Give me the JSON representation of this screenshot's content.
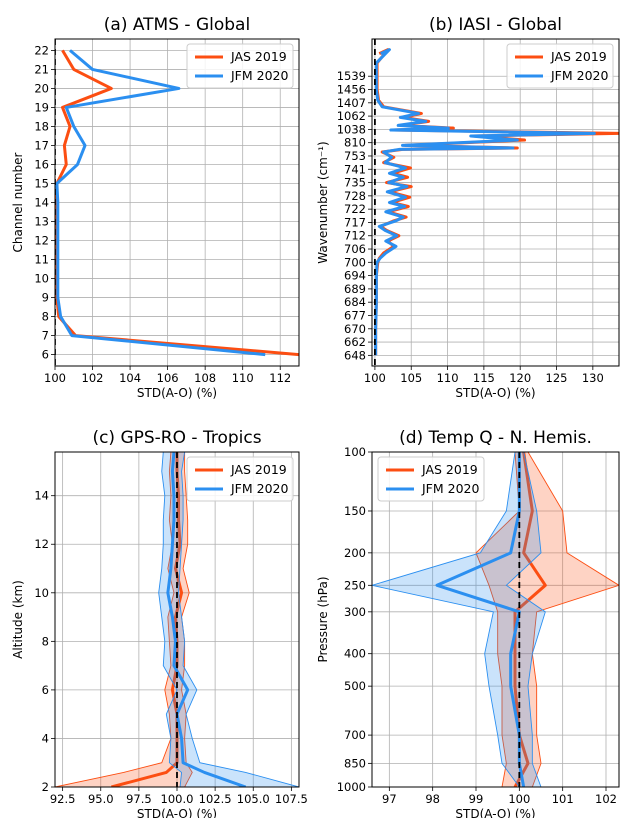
{
  "colors": {
    "jas": "#fc4e12",
    "jfm": "#2b8ff0"
  },
  "panels": [
    {
      "id": "a",
      "title": "(a) ATMS - Global",
      "xlabel": "STD(A-O) (%)",
      "ylabel": "Channel number",
      "legend": [
        "JAS 2019",
        "JFM 2020"
      ],
      "chart_data": {
        "type": "line",
        "xlim": [
          100,
          113
        ],
        "ylim": [
          5.4,
          22.6
        ],
        "xticks": [
          100,
          102,
          104,
          106,
          108,
          110,
          112
        ],
        "yticks": [
          6,
          7,
          8,
          9,
          10,
          11,
          12,
          13,
          14,
          15,
          16,
          17,
          18,
          19,
          20,
          21,
          22
        ],
        "grid": true,
        "legend_position": "top-right",
        "reference_line_x": 100,
        "series": [
          {
            "name": "JAS 2019",
            "color": "#fc4e12",
            "points": [
              [
                113.0,
                6
              ],
              [
                101.1,
                7
              ],
              [
                100.2,
                8
              ],
              [
                100.1,
                9
              ],
              [
                100.1,
                10
              ],
              [
                100.1,
                11
              ],
              [
                100.1,
                12
              ],
              [
                100.1,
                13
              ],
              [
                100.1,
                14
              ],
              [
                100.1,
                15
              ],
              [
                100.6,
                16
              ],
              [
                100.5,
                17
              ],
              [
                100.8,
                18
              ],
              [
                100.4,
                19
              ],
              [
                103.0,
                20
              ],
              [
                101.0,
                21
              ],
              [
                100.4,
                22
              ]
            ]
          },
          {
            "name": "JFM 2020",
            "color": "#2b8ff0",
            "points": [
              [
                111.2,
                6
              ],
              [
                100.9,
                7
              ],
              [
                100.3,
                8
              ],
              [
                100.15,
                9
              ],
              [
                100.15,
                10
              ],
              [
                100.15,
                11
              ],
              [
                100.15,
                12
              ],
              [
                100.15,
                13
              ],
              [
                100.15,
                14
              ],
              [
                100.1,
                15
              ],
              [
                101.2,
                16
              ],
              [
                101.6,
                17
              ],
              [
                101.0,
                18
              ],
              [
                100.6,
                19
              ],
              [
                106.6,
                20
              ],
              [
                102.0,
                21
              ],
              [
                100.8,
                22
              ]
            ]
          }
        ]
      }
    },
    {
      "id": "b",
      "title": "(b) IASI - Global",
      "xlabel": "STD(A-O) (%)",
      "ylabel": "Wavenumber (cm⁻¹)",
      "legend": [
        "JAS 2019",
        "JFM 2020"
      ],
      "chart_data": {
        "type": "line",
        "xlim": [
          99.6,
          133.6
        ],
        "ylim": [
          -0.8,
          23.8
        ],
        "xticks": [
          100,
          105,
          110,
          115,
          120,
          125,
          130
        ],
        "yticks": [
          "648",
          "662",
          "670",
          "677",
          "684",
          "689",
          "694",
          "700",
          "706",
          "712",
          "717",
          "722",
          "728",
          "735",
          "741",
          "753",
          "810",
          "1038",
          "1062",
          "1407",
          "1456",
          "1539"
        ],
        "grid": true,
        "legend_position": "top-right",
        "reference_line_x": 100,
        "series": [
          {
            "name": "JAS 2019",
            "color": "#fc4e12",
            "points": [
              [
                100.1,
                0
              ],
              [
                100.1,
                2
              ],
              [
                100.2,
                4
              ],
              [
                100.2,
                6
              ],
              [
                100.4,
                7
              ],
              [
                100.6,
                7.3
              ],
              [
                101.2,
                7.7
              ],
              [
                102.6,
                8.2
              ],
              [
                101.8,
                8.6
              ],
              [
                103.3,
                9.0
              ],
              [
                101.6,
                9.4
              ],
              [
                100.8,
                9.7
              ],
              [
                102.5,
                10.1
              ],
              [
                104.3,
                10.4
              ],
              [
                101.8,
                10.8
              ],
              [
                104.6,
                11.2
              ],
              [
                102.3,
                11.5
              ],
              [
                104.8,
                11.9
              ],
              [
                102.0,
                12.3
              ],
              [
                105.0,
                12.7
              ],
              [
                101.6,
                13.0
              ],
              [
                104.5,
                13.4
              ],
              [
                102.4,
                13.7
              ],
              [
                104.9,
                14.1
              ],
              [
                101.2,
                14.5
              ],
              [
                102.6,
                14.9
              ],
              [
                101.0,
                15.3
              ],
              [
                103.8,
                15.5
              ],
              [
                119.6,
                15.6
              ],
              [
                104.2,
                15.8
              ],
              [
                120.6,
                16.2
              ],
              [
                113.6,
                16.5
              ],
              [
                133.6,
                16.7
              ],
              [
                102.6,
                16.95
              ],
              [
                110.8,
                17.1
              ],
              [
                103.6,
                17.3
              ],
              [
                107.4,
                17.6
              ],
              [
                104.0,
                17.9
              ],
              [
                106.4,
                18.2
              ],
              [
                101.2,
                18.7
              ],
              [
                100.5,
                19.2
              ],
              [
                100.3,
                20.0
              ],
              [
                100.3,
                21.0
              ],
              [
                100.3,
                22.0
              ],
              [
                101.8,
                23.0
              ],
              [
                100.6,
                22.7
              ]
            ]
          },
          {
            "name": "JFM 2020",
            "color": "#2b8ff0",
            "points": [
              [
                100.1,
                0
              ],
              [
                100.1,
                2
              ],
              [
                100.2,
                4
              ],
              [
                100.2,
                6
              ],
              [
                100.3,
                7
              ],
              [
                100.7,
                7.3
              ],
              [
                101.5,
                7.7
              ],
              [
                102.9,
                8.2
              ],
              [
                101.5,
                8.6
              ],
              [
                103.0,
                9.0
              ],
              [
                101.4,
                9.4
              ],
              [
                100.6,
                9.7
              ],
              [
                102.8,
                10.1
              ],
              [
                103.9,
                10.4
              ],
              [
                101.5,
                10.8
              ],
              [
                104.1,
                11.2
              ],
              [
                102.0,
                11.5
              ],
              [
                104.2,
                11.9
              ],
              [
                101.7,
                12.3
              ],
              [
                104.4,
                12.7
              ],
              [
                101.9,
                13.0
              ],
              [
                103.9,
                13.4
              ],
              [
                102.0,
                13.7
              ],
              [
                104.2,
                14.1
              ],
              [
                101.4,
                14.5
              ],
              [
                102.3,
                14.9
              ],
              [
                101.2,
                15.3
              ],
              [
                103.4,
                15.5
              ],
              [
                119.0,
                15.6
              ],
              [
                103.8,
                15.8
              ],
              [
                119.6,
                16.2
              ],
              [
                113.2,
                16.5
              ],
              [
                130.2,
                16.7
              ],
              [
                102.2,
                16.95
              ],
              [
                110.1,
                17.1
              ],
              [
                103.2,
                17.3
              ],
              [
                107.0,
                17.6
              ],
              [
                103.5,
                17.9
              ],
              [
                106.0,
                18.2
              ],
              [
                101.0,
                18.7
              ],
              [
                100.4,
                19.2
              ],
              [
                100.2,
                20.0
              ],
              [
                100.2,
                21.0
              ],
              [
                100.2,
                22.0
              ],
              [
                102.0,
                23.0
              ],
              [
                100.8,
                22.7
              ]
            ]
          }
        ]
      }
    },
    {
      "id": "c",
      "title": "(c) GPS-RO - Tropics",
      "xlabel": "STD(A-O) (%)",
      "ylabel": "Altitude (km)",
      "legend": [
        "JAS 2019",
        "JFM 2020"
      ],
      "chart_data": {
        "type": "area",
        "xlim": [
          92,
          108
        ],
        "ylim": [
          2,
          15.8
        ],
        "xticks": [
          "92.5",
          "95.0",
          "97.5",
          "100.0",
          "102.5",
          "105.0",
          "107.5"
        ],
        "xtick_values": [
          92.5,
          95,
          97.5,
          100,
          102.5,
          105,
          107.5
        ],
        "yticks": [
          2,
          4,
          6,
          8,
          10,
          12,
          14
        ],
        "grid": true,
        "legend_position": "top-right",
        "reference_line_x": 100,
        "series": [
          {
            "name": "JAS 2019",
            "color": "#fc4e12",
            "y": [
              2,
              2.6,
              3,
              4,
              5,
              6,
              7,
              8,
              9,
              10,
              11,
              12,
              13,
              14,
              15,
              15.8
            ],
            "mean": [
              95.7,
              99.3,
              100.0,
              100.0,
              100.0,
              99.7,
              100.0,
              100.0,
              99.9,
              100.3,
              99.9,
              100.2,
              100.1,
              100.1,
              100.0,
              100.0
            ],
            "lower": [
              92.0,
              96.5,
              99.0,
              99.6,
              99.5,
              99.2,
              99.6,
              99.5,
              99.4,
              99.8,
              99.4,
              99.7,
              99.5,
              99.6,
              99.5,
              99.6
            ],
            "upper": [
              100.5,
              101.0,
              100.6,
              100.5,
              100.6,
              100.3,
              100.5,
              100.5,
              100.3,
              100.8,
              100.4,
              100.7,
              100.7,
              100.6,
              100.5,
              100.5
            ]
          },
          {
            "name": "JFM 2020",
            "color": "#2b8ff0",
            "y": [
              2,
              2.6,
              3,
              4,
              5,
              6,
              7,
              8,
              9,
              10,
              11,
              12,
              13,
              14,
              15,
              15.8
            ],
            "mean": [
              104.5,
              101.8,
              100.4,
              100.3,
              100.0,
              100.7,
              99.8,
              99.9,
              99.7,
              99.4,
              99.6,
              99.7,
              99.8,
              99.8,
              99.7,
              99.8
            ],
            "lower": [
              100.2,
              100.3,
              99.5,
              99.6,
              99.3,
              100.0,
              99.1,
              99.2,
              99.0,
              98.8,
              99.0,
              99.1,
              99.1,
              99.2,
              99.0,
              99.1
            ],
            "upper": [
              108.0,
              104.5,
              101.5,
              101.0,
              100.6,
              101.3,
              100.4,
              100.5,
              100.3,
              100.1,
              100.2,
              100.3,
              100.4,
              100.4,
              100.3,
              100.5
            ]
          }
        ]
      }
    },
    {
      "id": "d",
      "title": "(d) Temp Q - N. Hemis.",
      "xlabel": "STD(A-O) (%)",
      "ylabel": "Pressure (hPa)",
      "legend": [
        "JAS 2019",
        "JFM 2020"
      ],
      "chart_data": {
        "type": "area",
        "xlim": [
          96.6,
          102.3
        ],
        "ylim": [
          1000,
          100
        ],
        "xticks": [
          97,
          98,
          99,
          100,
          101,
          102
        ],
        "yticks": [
          "100",
          "150",
          "200",
          "250",
          "300",
          "400",
          "500",
          "700",
          "850",
          "1000"
        ],
        "grid": true,
        "legend_position": "top-left",
        "reference_line_x": 100,
        "series": [
          {
            "name": "JAS 2019",
            "color": "#fc4e12",
            "levels": [
              "100",
              "150",
              "200",
              "250",
              "300",
              "400",
              "500",
              "700",
              "850",
              "1000"
            ],
            "mean": [
              100.1,
              100.3,
              100.1,
              100.6,
              99.9,
              99.9,
              99.9,
              100.0,
              100.2,
              99.9
            ],
            "lower": [
              99.9,
              100.0,
              99.0,
              99.3,
              99.5,
              99.5,
              99.6,
              99.6,
              99.7,
              99.6
            ],
            "upper": [
              100.2,
              101.0,
              101.1,
              102.3,
              100.4,
              100.3,
              100.4,
              100.4,
              100.5,
              100.3
            ]
          },
          {
            "name": "JFM 2020",
            "color": "#2b8ff0",
            "levels": [
              "100",
              "150",
              "200",
              "250",
              "300",
              "400",
              "500",
              "700",
              "850",
              "1000"
            ],
            "mean": [
              100.0,
              100.0,
              99.8,
              98.1,
              100.0,
              99.8,
              99.8,
              100.0,
              100.0,
              100.1
            ],
            "lower": [
              99.9,
              99.7,
              99.1,
              96.6,
              99.4,
              99.2,
              99.3,
              99.5,
              99.6,
              100.0
            ],
            "upper": [
              100.1,
              100.4,
              100.5,
              99.7,
              100.6,
              100.3,
              100.2,
              100.3,
              100.3,
              100.5
            ]
          }
        ]
      }
    }
  ]
}
